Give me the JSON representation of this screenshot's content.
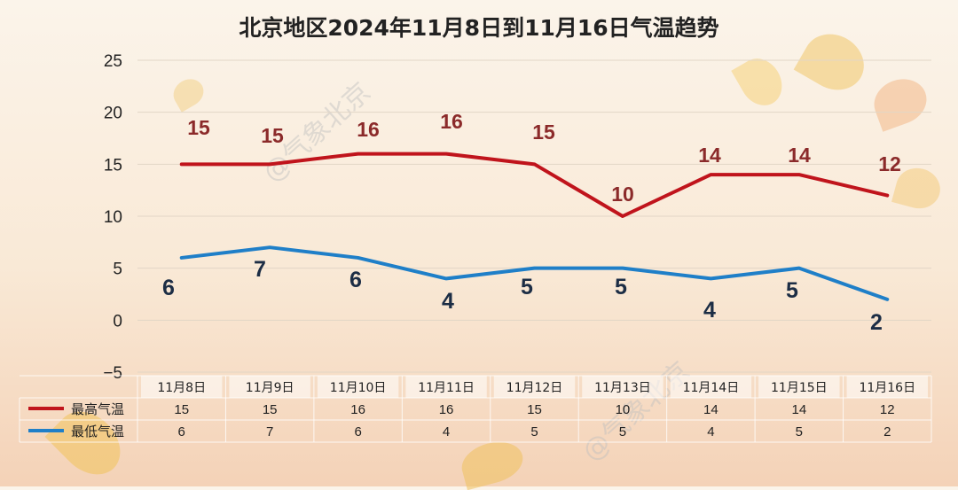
{
  "chart_data": {
    "type": "line",
    "title": "北京地区2024年11月8日到11月16日气温趋势",
    "categories": [
      "11月8日",
      "11月9日",
      "11月10日",
      "11月11日",
      "11月12日",
      "11月13日",
      "11月14日",
      "11月15日",
      "11月16日"
    ],
    "y_ticks": [
      "25",
      "20",
      "15",
      "10",
      "5",
      "0",
      "−5"
    ],
    "ylim": [
      -5,
      25
    ],
    "grid": true,
    "legend": "bottom-left data table",
    "series": [
      {
        "name": "最高气温",
        "color": "#c0141c",
        "label_color": "#8b2a2a",
        "values": [
          15,
          15,
          16,
          16,
          15,
          10,
          14,
          14,
          12
        ],
        "labels": [
          "15",
          "15",
          "16",
          "16",
          "15",
          "10",
          "14",
          "14",
          "12"
        ]
      },
      {
        "name": "最低气温",
        "color": "#1f7fc8",
        "label_color": "#1c2d45",
        "values": [
          6,
          7,
          6,
          4,
          5,
          5,
          4,
          5,
          2
        ],
        "labels": [
          "6",
          "7",
          "6",
          "4",
          "5",
          "5",
          "4",
          "5",
          "2"
        ]
      }
    ],
    "table": {
      "high_row": [
        "15",
        "15",
        "16",
        "16",
        "15",
        "10",
        "14",
        "14",
        "12"
      ],
      "low_row": [
        "6",
        "7",
        "6",
        "4",
        "5",
        "5",
        "4",
        "5",
        "2"
      ]
    }
  },
  "watermark": "@气象北京"
}
